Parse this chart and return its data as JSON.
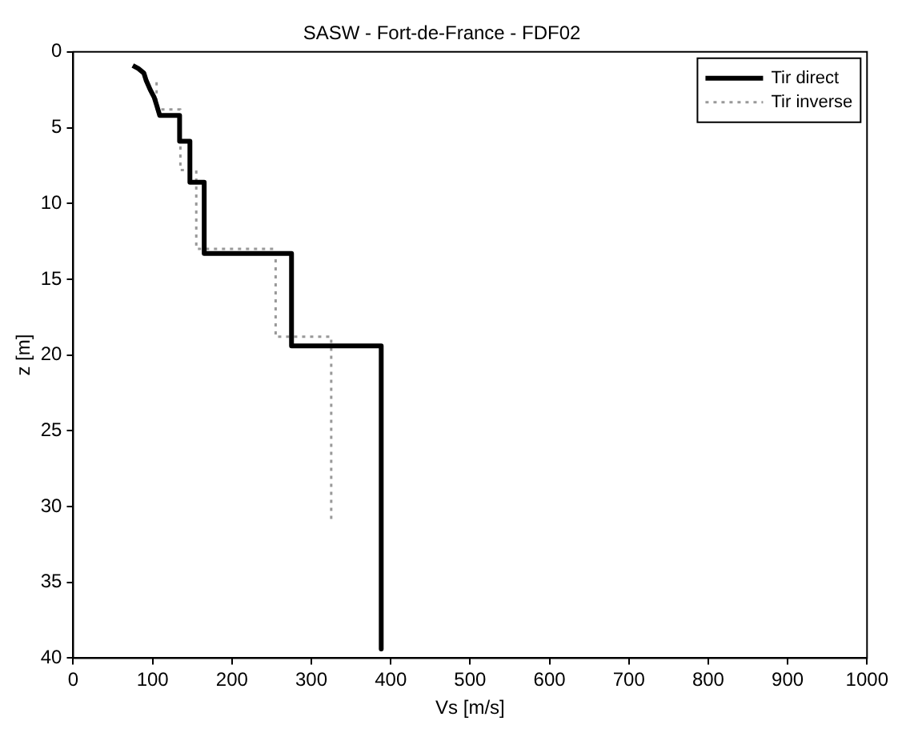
{
  "chart_data": {
    "type": "line",
    "title": "SASW - Fort-de-France - FDF02",
    "xlabel": "Vs [m/s]",
    "ylabel": "z [m]",
    "xlim": [
      0,
      1000
    ],
    "xticks": [
      0,
      100,
      200,
      300,
      400,
      500,
      600,
      700,
      800,
      900,
      1000
    ],
    "ylim": [
      40,
      0
    ],
    "yticks": [
      0,
      5,
      10,
      15,
      20,
      25,
      30,
      35,
      40
    ],
    "grid": false,
    "legend": "top right",
    "marker": "none",
    "series": [
      {
        "name": "Tir direct",
        "color": "#000000",
        "line_style": "solid",
        "x": [
          75,
          82,
          89,
          92,
          97,
          102,
          105,
          109,
          134,
          134,
          147,
          147,
          165,
          165,
          275,
          275,
          388,
          388
        ],
        "values": [
          0.9,
          1.1,
          1.4,
          1.9,
          2.5,
          3.0,
          3.5,
          4.2,
          4.2,
          5.9,
          5.9,
          8.6,
          8.6,
          13.3,
          13.3,
          19.4,
          19.4,
          39.4
        ]
      },
      {
        "name": "Tir inverse",
        "color": "#999999",
        "line_style": "dotted",
        "x": [
          105,
          105,
          135,
          135,
          155,
          155,
          255,
          255,
          325,
          325
        ],
        "values": [
          2,
          3.8,
          3.8,
          7.8,
          7.8,
          13,
          13,
          18.8,
          18.8,
          31
        ]
      }
    ]
  }
}
